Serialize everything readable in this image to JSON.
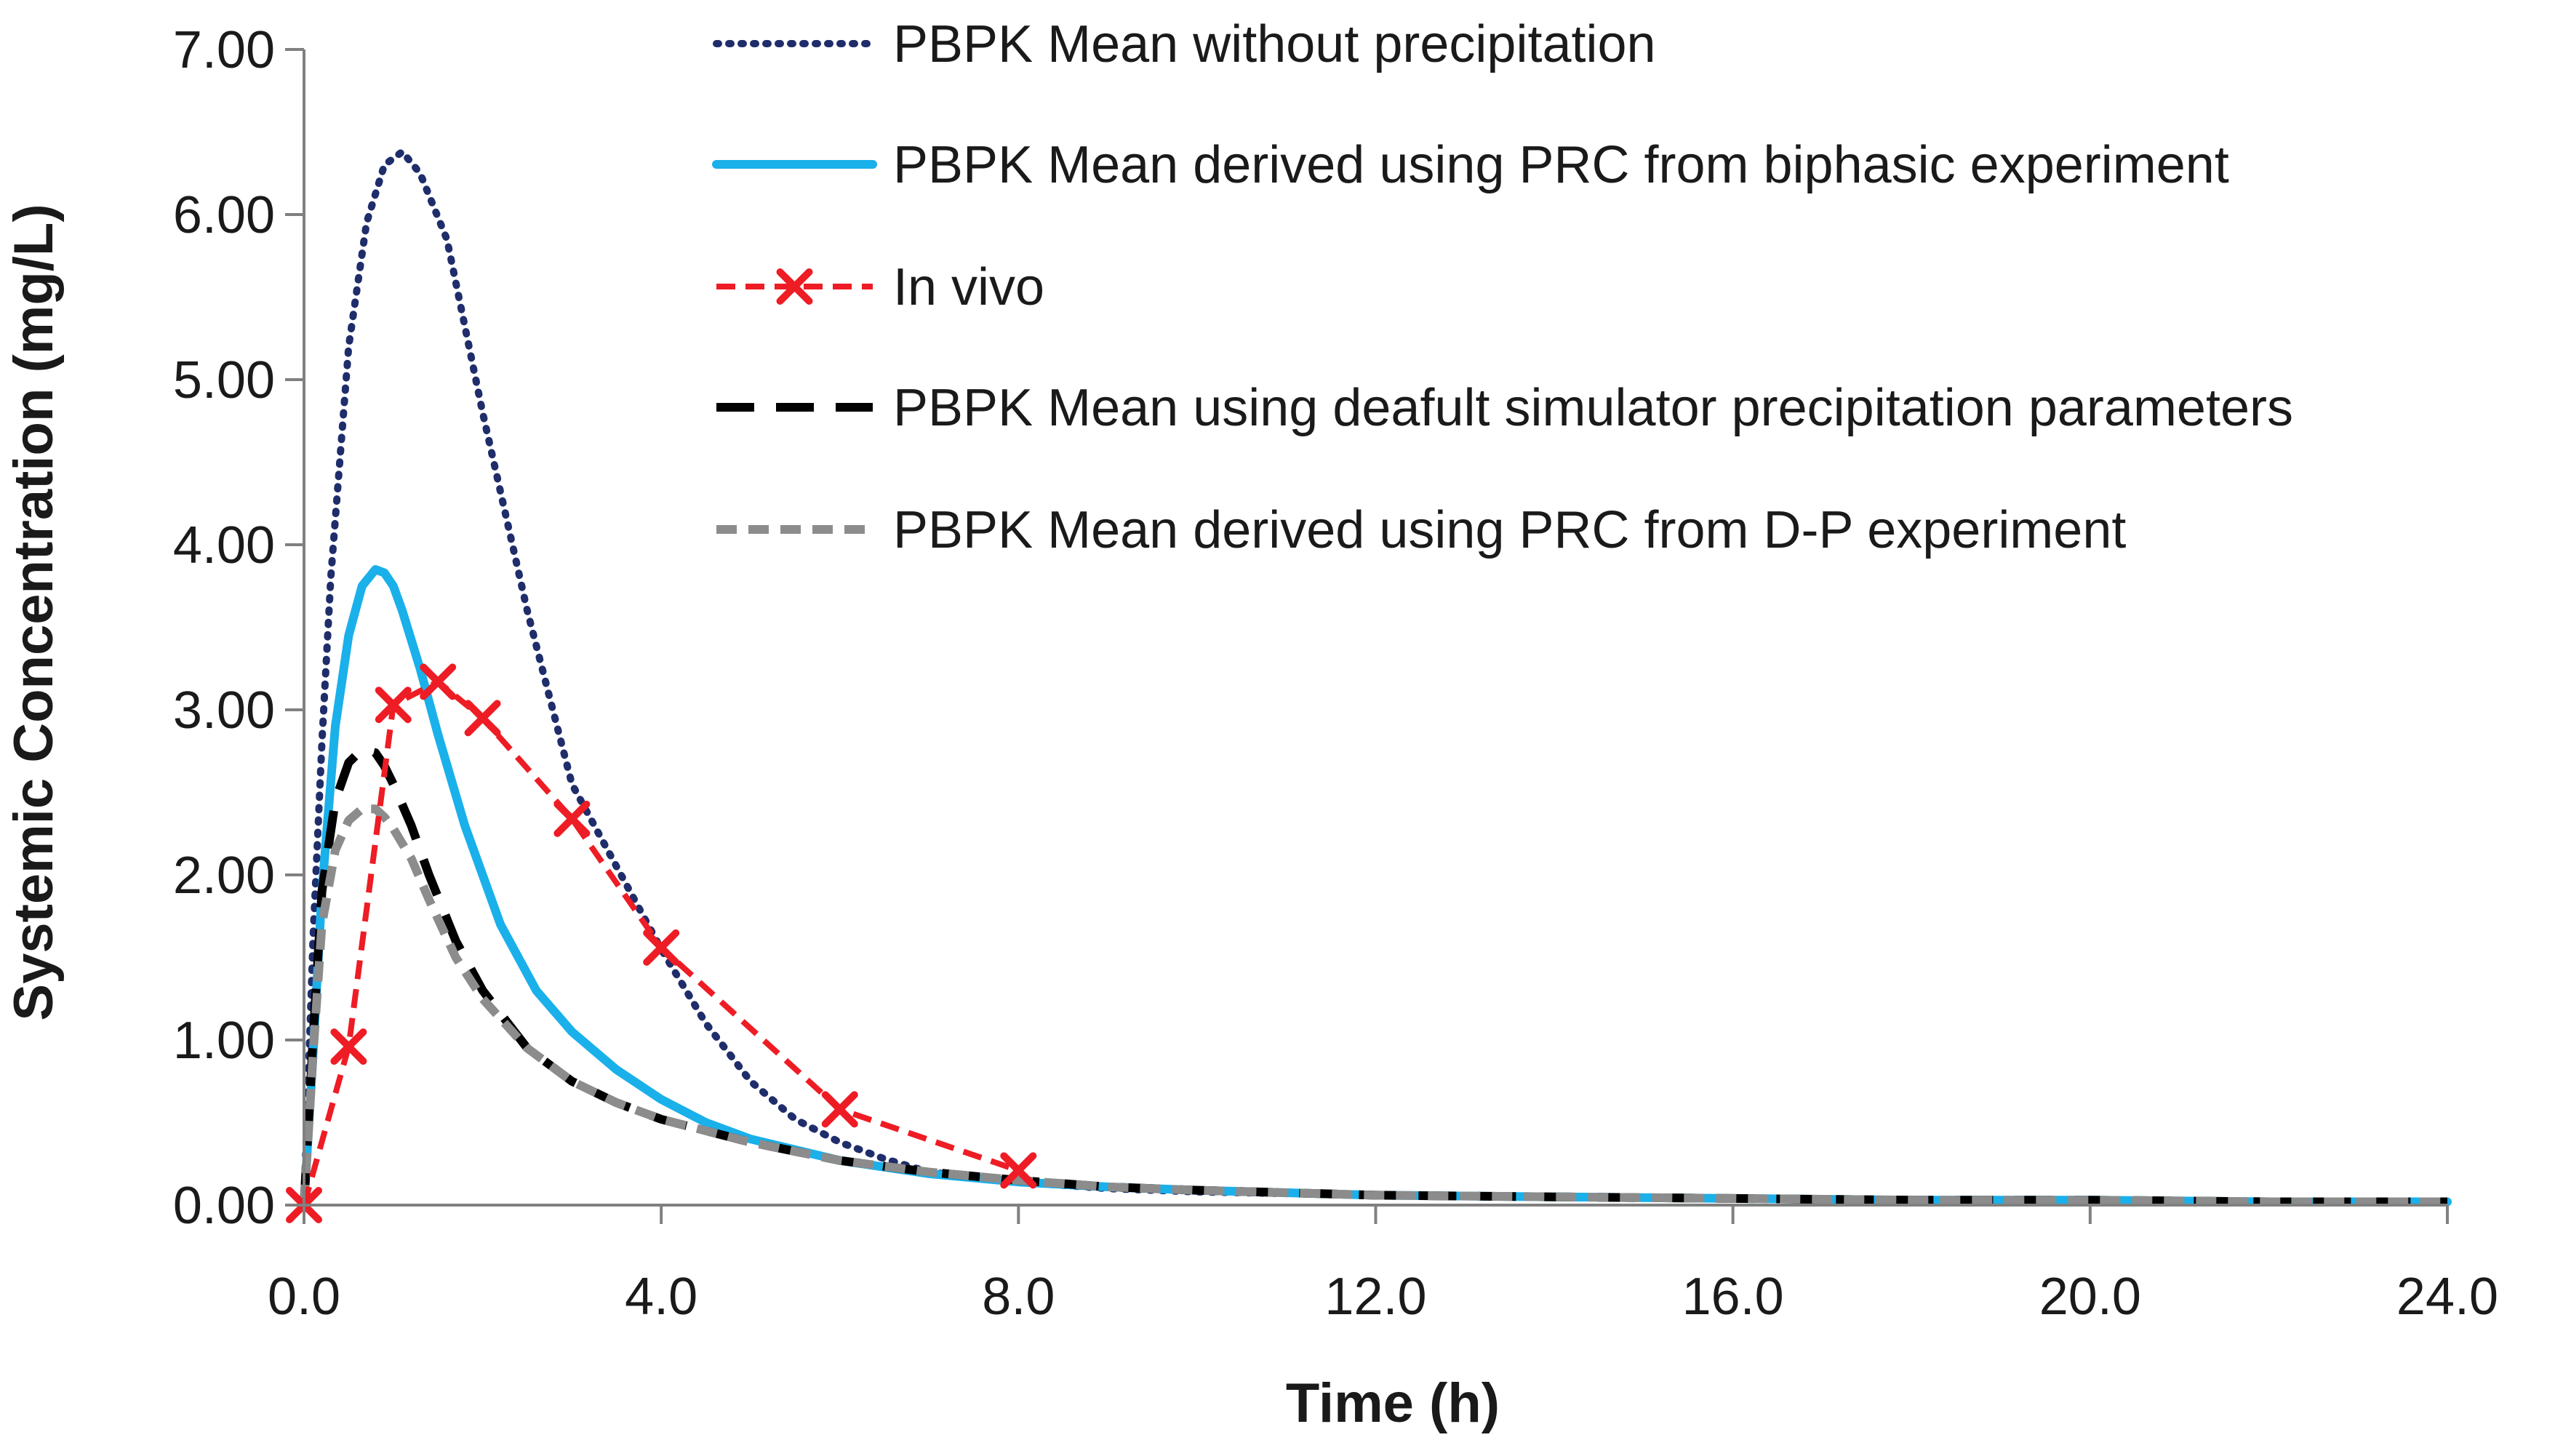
{
  "chart_data": {
    "type": "line",
    "title": "",
    "xlabel": "Time (h)",
    "ylabel": "Systemic Concentration (mg/L)",
    "xlim": [
      0,
      24
    ],
    "ylim": [
      0,
      7
    ],
    "x_ticks": [
      "0.0",
      "4.0",
      "8.0",
      "12.0",
      "16.0",
      "20.0",
      "24.0"
    ],
    "y_ticks": [
      "0.00",
      "1.00",
      "2.00",
      "3.00",
      "4.00",
      "5.00",
      "6.00",
      "7.00"
    ],
    "grid": false,
    "legend_position": "top-right",
    "series": [
      {
        "name": "PBPK Mean without precipitation",
        "style": "dotted",
        "color": "#1f2d6b",
        "x": [
          0,
          0.1,
          0.2,
          0.3,
          0.5,
          0.7,
          0.9,
          1.1,
          1.3,
          1.6,
          2.0,
          2.5,
          3.0,
          3.5,
          4.0,
          4.5,
          5.0,
          5.5,
          6.0,
          6.5,
          7.0,
          8.0,
          9.0,
          10.0,
          12.0,
          14.0,
          16.0,
          18.0,
          20.0,
          22.0,
          24.0
        ],
        "y": [
          0,
          1.6,
          2.8,
          3.8,
          5.2,
          5.95,
          6.3,
          6.38,
          6.25,
          5.85,
          4.8,
          3.6,
          2.55,
          2.05,
          1.55,
          1.1,
          0.75,
          0.52,
          0.38,
          0.28,
          0.2,
          0.14,
          0.1,
          0.08,
          0.06,
          0.05,
          0.04,
          0.03,
          0.03,
          0.02,
          0.02
        ]
      },
      {
        "name": "PBPK Mean derived using PRC from biphasic experiment",
        "style": "solid",
        "color": "#1ab0ea",
        "x": [
          0,
          0.1,
          0.2,
          0.35,
          0.5,
          0.65,
          0.8,
          0.9,
          1.0,
          1.1,
          1.3,
          1.5,
          1.8,
          2.2,
          2.6,
          3.0,
          3.5,
          4.0,
          4.5,
          5.0,
          6.0,
          7.0,
          8.0,
          9.0,
          10.0,
          12.0,
          14.0,
          16.0,
          18.0,
          20.0,
          22.0,
          24.0
        ],
        "y": [
          0,
          0.9,
          1.9,
          2.9,
          3.45,
          3.75,
          3.85,
          3.83,
          3.75,
          3.6,
          3.25,
          2.85,
          2.3,
          1.7,
          1.3,
          1.05,
          0.82,
          0.64,
          0.5,
          0.4,
          0.27,
          0.19,
          0.14,
          0.11,
          0.09,
          0.06,
          0.05,
          0.04,
          0.03,
          0.03,
          0.02,
          0.02
        ]
      },
      {
        "name": "In vivo",
        "style": "dashed-markers",
        "color": "#ee1c24",
        "x": [
          0,
          0.5,
          1.0,
          1.5,
          2.0,
          3.0,
          4.0,
          6.0,
          8.0
        ],
        "y": [
          0.0,
          0.96,
          3.03,
          3.17,
          2.95,
          2.34,
          1.56,
          0.58,
          0.21
        ]
      },
      {
        "name": "PBPK Mean using deafult simulator precipitation parameters",
        "style": "long-dash",
        "color": "#000000",
        "x": [
          0,
          0.1,
          0.2,
          0.35,
          0.5,
          0.65,
          0.8,
          0.9,
          1.0,
          1.2,
          1.4,
          1.7,
          2.0,
          2.5,
          3.0,
          3.5,
          4.0,
          5.0,
          6.0,
          7.0,
          8.0,
          9.0,
          10.0,
          12.0,
          14.0,
          16.0,
          18.0,
          20.0,
          22.0,
          24.0
        ],
        "y": [
          0,
          1.0,
          1.9,
          2.45,
          2.68,
          2.76,
          2.74,
          2.66,
          2.55,
          2.3,
          2.0,
          1.6,
          1.3,
          0.95,
          0.75,
          0.62,
          0.52,
          0.38,
          0.27,
          0.2,
          0.15,
          0.11,
          0.09,
          0.06,
          0.05,
          0.04,
          0.03,
          0.03,
          0.02,
          0.02
        ]
      },
      {
        "name": "PBPK Mean derived using PRC from D-P experiment",
        "style": "dashed",
        "color": "#8c8c8c",
        "x": [
          0,
          0.1,
          0.2,
          0.35,
          0.5,
          0.65,
          0.8,
          0.9,
          1.0,
          1.2,
          1.4,
          1.7,
          2.0,
          2.5,
          3.0,
          3.5,
          4.0,
          5.0,
          6.0,
          7.0,
          8.0,
          9.0,
          10.0,
          12.0,
          14.0,
          16.0,
          18.0,
          20.0,
          22.0,
          24.0
        ],
        "y": [
          0,
          0.9,
          1.7,
          2.15,
          2.33,
          2.4,
          2.4,
          2.35,
          2.28,
          2.1,
          1.85,
          1.5,
          1.25,
          0.95,
          0.75,
          0.62,
          0.52,
          0.38,
          0.27,
          0.2,
          0.15,
          0.11,
          0.09,
          0.06,
          0.05,
          0.04,
          0.03,
          0.03,
          0.02,
          0.02
        ]
      }
    ]
  }
}
